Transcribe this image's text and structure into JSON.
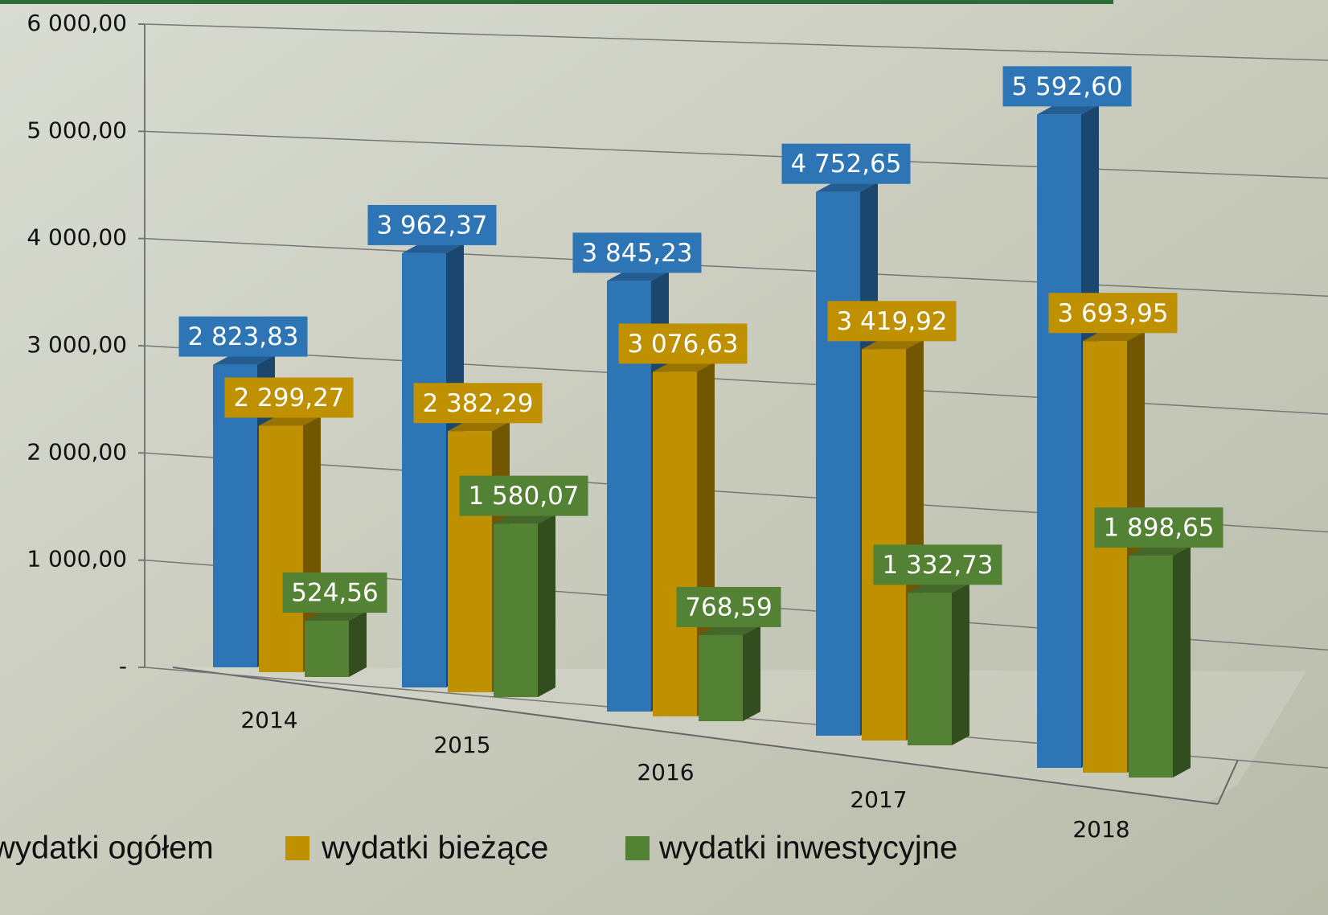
{
  "chart_data": {
    "type": "bar3d",
    "categories": [
      "2014",
      "2015",
      "2016",
      "2017",
      "2018"
    ],
    "series": [
      {
        "name": "wydatki ogółem",
        "color": "#2e75b6",
        "values": [
          2823.83,
          3962.37,
          3845.23,
          4752.65,
          5592.6
        ],
        "value_labels": [
          "2 823,83",
          "3 962,37",
          "3 845,23",
          "4 752,65",
          "5 592,60"
        ]
      },
      {
        "name": "wydatki bieżące",
        "color": "#bf9000",
        "values": [
          2299.27,
          2382.29,
          3076.63,
          3419.92,
          3693.95
        ],
        "value_labels": [
          "2 299,27",
          "2 382,29",
          "3 076,63",
          "3 419,92",
          "3 693,95"
        ]
      },
      {
        "name": "wydatki inwestycyjne",
        "color": "#548235",
        "values": [
          524.56,
          1580.07,
          768.59,
          1332.73,
          1898.65
        ],
        "value_labels": [
          "524,56",
          "1 580,07",
          "768,59",
          "1 332,73",
          "1 898,65"
        ]
      }
    ],
    "ylim": [
      0,
      6000
    ],
    "yticks": [
      {
        "value": 0,
        "label": "-"
      },
      {
        "value": 1000,
        "label": "1 000,00"
      },
      {
        "value": 2000,
        "label": "2 000,00"
      },
      {
        "value": 3000,
        "label": "3 000,00"
      },
      {
        "value": 4000,
        "label": "4 000,00"
      },
      {
        "value": 5000,
        "label": "5 000,00"
      },
      {
        "value": 6000,
        "label": "6 000,00"
      }
    ],
    "grid": true
  }
}
